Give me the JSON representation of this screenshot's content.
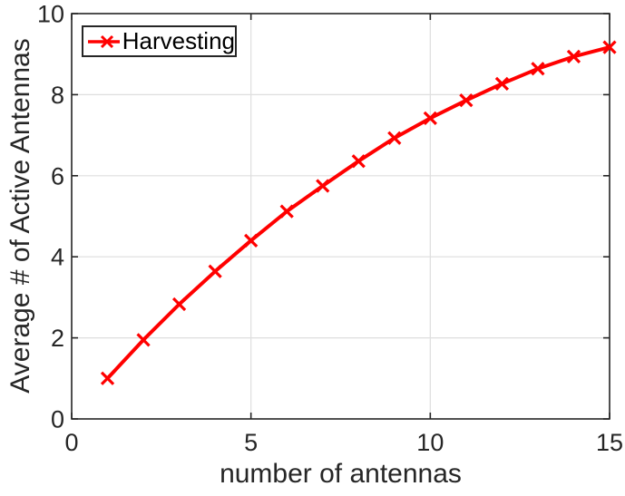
{
  "chart_data": {
    "type": "line",
    "title": "",
    "xlabel": "number of antennas",
    "ylabel": "Average # of Active Antennas",
    "xlim": [
      0,
      15
    ],
    "ylim": [
      0,
      10
    ],
    "xticks": [
      0,
      5,
      10,
      15
    ],
    "yticks": [
      0,
      2,
      4,
      6,
      8,
      10
    ],
    "grid": true,
    "legend_position": "top-left",
    "series": [
      {
        "name": "Harvesting",
        "color": "#ff0000",
        "marker": "x",
        "line_width": 4,
        "x": [
          1,
          2,
          3,
          4,
          5,
          6,
          7,
          8,
          9,
          10,
          11,
          12,
          13,
          14,
          15
        ],
        "y": [
          1.0,
          1.95,
          2.83,
          3.64,
          4.4,
          5.12,
          5.75,
          6.36,
          6.93,
          7.42,
          7.86,
          8.27,
          8.64,
          8.94,
          9.17
        ]
      }
    ],
    "colors": {
      "axis": "#262626",
      "grid": "#dedede",
      "tick_label": "#262626",
      "legend_border": "#262626",
      "background": "#ffffff"
    }
  }
}
